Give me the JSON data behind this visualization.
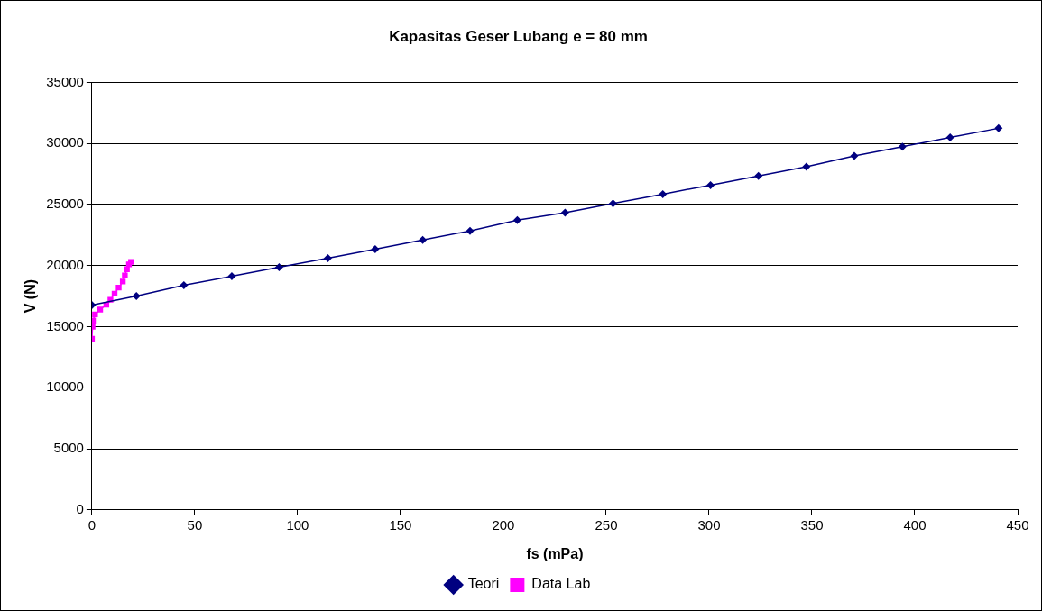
{
  "chart_data": {
    "type": "line",
    "title": "Kapasitas Geser Lubang e = 80 mm",
    "xlabel": "fs (mPa)",
    "ylabel": "V (N)",
    "xlim": [
      0,
      450
    ],
    "xticks": [
      0,
      50,
      100,
      150,
      200,
      250,
      300,
      350,
      400,
      450
    ],
    "ylim": [
      0,
      35000
    ],
    "yticks": [
      0,
      5000,
      10000,
      15000,
      20000,
      25000,
      30000,
      35000
    ],
    "grid": "y",
    "legend": "bottom",
    "series": [
      {
        "name": "Teori",
        "color": "#000080",
        "marker": "diamond",
        "x": [
          0,
          21.6,
          44.7,
          68,
          91,
          114.7,
          137.7,
          160.8,
          183.8,
          206.8,
          230,
          253.3,
          277.5,
          300.7,
          324,
          347.3,
          370.6,
          394,
          417.2,
          440.7
        ],
        "values": [
          16770,
          17510,
          18390,
          19130,
          19870,
          20610,
          21350,
          22100,
          22840,
          23720,
          24330,
          25080,
          25850,
          26590,
          27340,
          28090,
          28980,
          29730,
          30500,
          31240
        ]
      },
      {
        "name": "Data Lab",
        "color": "#ff00ff",
        "marker": "square",
        "x": [
          0,
          0.3,
          0.5,
          1.5,
          4,
          7,
          9,
          11,
          13,
          15,
          16,
          17,
          18,
          19
        ],
        "values": [
          14000,
          15000,
          15500,
          16000,
          16400,
          16800,
          17200,
          17700,
          18200,
          18700,
          19200,
          19700,
          20100,
          20300
        ]
      }
    ]
  }
}
